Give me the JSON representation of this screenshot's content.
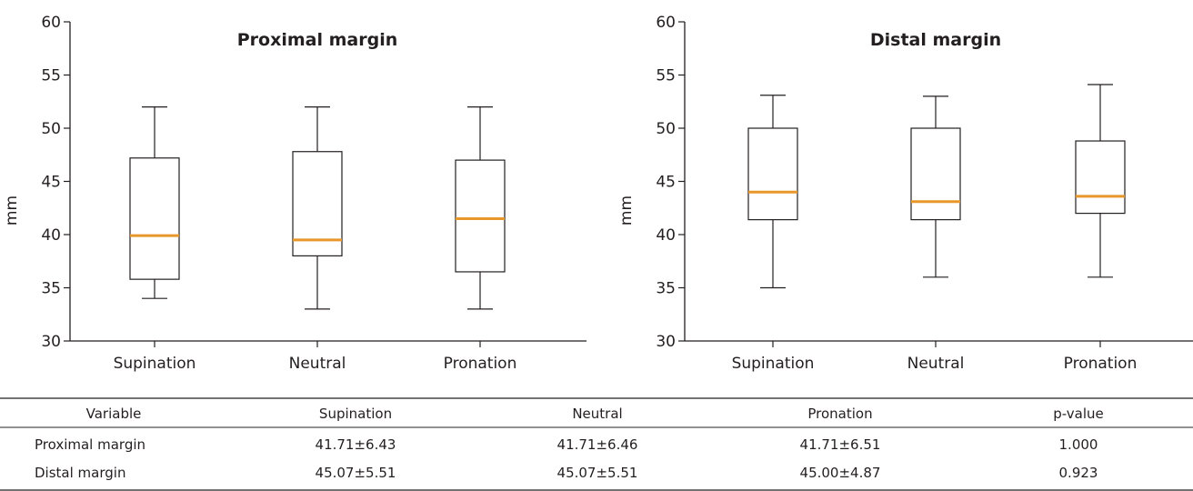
{
  "chart_data": [
    {
      "type": "box",
      "title": "Proximal margin",
      "ylabel": "mm",
      "ylim": [
        30,
        60
      ],
      "yticks": [
        30,
        35,
        40,
        45,
        50,
        55,
        60
      ],
      "categories": [
        "Supination",
        "Neutral",
        "Pronation"
      ],
      "boxes": [
        {
          "category": "Supination",
          "min": 34,
          "q1": 35.8,
          "median": 39.9,
          "q3": 47.2,
          "max": 52
        },
        {
          "category": "Neutral",
          "min": 33,
          "q1": 38,
          "median": 39.5,
          "q3": 47.8,
          "max": 52
        },
        {
          "category": "Pronation",
          "min": 33,
          "q1": 36.5,
          "median": 41.5,
          "q3": 47,
          "max": 52
        }
      ],
      "median_color": "#e8982a",
      "grid": false
    },
    {
      "type": "box",
      "title": "Distal margin",
      "ylabel": "mm",
      "ylim": [
        30,
        60
      ],
      "yticks": [
        30,
        35,
        40,
        45,
        50,
        55,
        60
      ],
      "categories": [
        "Supination",
        "Neutral",
        "Pronation"
      ],
      "boxes": [
        {
          "category": "Supination",
          "min": 35,
          "q1": 41.4,
          "median": 44,
          "q3": 50,
          "max": 53.1
        },
        {
          "category": "Neutral",
          "min": 36,
          "q1": 41.4,
          "median": 43.1,
          "q3": 50,
          "max": 53
        },
        {
          "category": "Pronation",
          "min": 36,
          "q1": 42,
          "median": 43.6,
          "q3": 48.8,
          "max": 54.1
        }
      ],
      "median_color": "#e8982a",
      "grid": false
    }
  ],
  "table": {
    "headers": [
      "Variable",
      "Supination",
      "Neutral",
      "Pronation",
      "p-value"
    ],
    "rows": [
      {
        "variable": "Proximal margin",
        "supination": "41.71±6.43",
        "neutral": "41.71±6.46",
        "pronation": "41.71±6.51",
        "p_value": "1.000"
      },
      {
        "variable": "Distal margin",
        "supination": "45.07±5.51",
        "neutral": "45.07±5.51",
        "pronation": "45.00±4.87",
        "p_value": "0.923"
      }
    ]
  },
  "colors": {
    "median": "#e8982a",
    "line": "#231f20"
  }
}
